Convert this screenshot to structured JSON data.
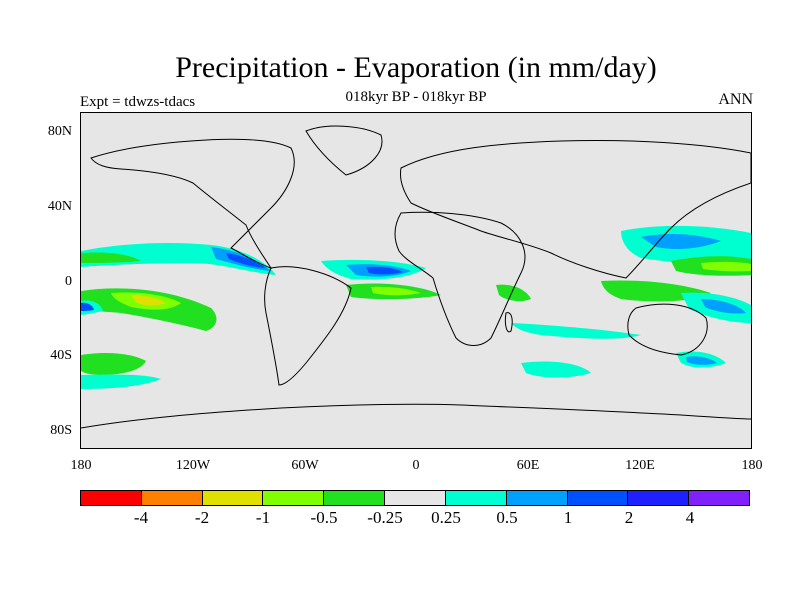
{
  "title": "Precipitation - Evaporation (in mm/day)",
  "subtitle": "018kyr BP - 018kyr BP",
  "left_label": "Expt = tdwzs-tdacs",
  "right_label": "ANN",
  "lat_labels": [
    "80N",
    "40N",
    "0",
    "40S",
    "80S"
  ],
  "lon_labels": [
    "180",
    "120W",
    "60W",
    "0",
    "60E",
    "120E",
    "180"
  ],
  "colorbar": {
    "colors": [
      "#ff0000",
      "#ff8000",
      "#e0e000",
      "#80ff00",
      "#20e020",
      "#e6e6e6",
      "#00ffd0",
      "#00a0ff",
      "#0050ff",
      "#2020ff",
      "#8020ff"
    ],
    "labels": [
      "-4",
      "-2",
      "-1",
      "-0.5",
      "-0.25",
      "0.25",
      "0.5",
      "1",
      "2",
      "4"
    ]
  },
  "map": {
    "ocean_color": "#e6e6e6",
    "coast_color": "#000000"
  }
}
